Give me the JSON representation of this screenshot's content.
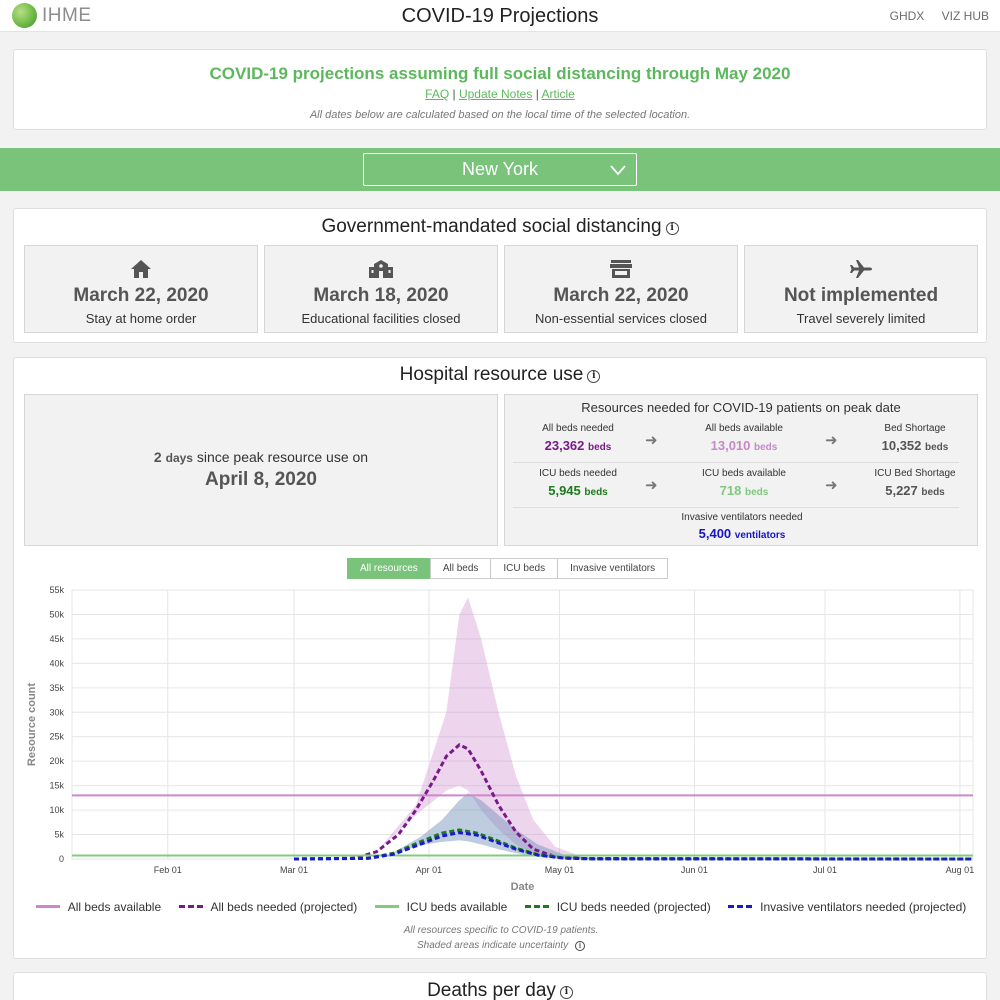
{
  "header": {
    "logo_text": "IHME",
    "title": "COVID-19 Projections",
    "nav": [
      "GHDX",
      "VIZ HUB"
    ]
  },
  "intro": {
    "title": "COVID-19 projections assuming full social distancing through May 2020",
    "links": [
      "FAQ",
      "Update Notes",
      "Article"
    ],
    "note": "All dates below are calculated based on the local time of the selected location."
  },
  "location": {
    "selected": "New York"
  },
  "distancing": {
    "title": "Government-mandated social distancing",
    "items": [
      {
        "icon": "home-icon",
        "date": "March 22, 2020",
        "label": "Stay at home order"
      },
      {
        "icon": "school-icon",
        "date": "March 18, 2020",
        "label": "Educational facilities closed"
      },
      {
        "icon": "store-icon",
        "date": "March 22, 2020",
        "label": "Non-essential services closed"
      },
      {
        "icon": "plane-icon",
        "date": "Not implemented",
        "label": "Travel severely limited"
      }
    ]
  },
  "hospital": {
    "title": "Hospital resource use",
    "peak": {
      "days": "2",
      "days_unit": "days",
      "text": "since peak resource use on",
      "date": "April 8, 2020"
    },
    "resources": {
      "title": "Resources needed for COVID-19 patients on peak date",
      "all_beds_needed": {
        "label": "All beds needed",
        "value": "23,362",
        "unit": "beds"
      },
      "all_beds_available": {
        "label": "All beds available",
        "value": "13,010",
        "unit": "beds"
      },
      "bed_shortage": {
        "label": "Bed Shortage",
        "value": "10,352",
        "unit": "beds"
      },
      "icu_needed": {
        "label": "ICU beds needed",
        "value": "5,945",
        "unit": "beds"
      },
      "icu_available": {
        "label": "ICU beds available",
        "value": "718",
        "unit": "beds"
      },
      "icu_shortage": {
        "label": "ICU Bed Shortage",
        "value": "5,227",
        "unit": "beds"
      },
      "ventilators": {
        "label": "Invasive ventilators needed",
        "value": "5,400",
        "unit": "ventilators"
      }
    },
    "tabs": [
      "All resources",
      "All beds",
      "ICU beds",
      "Invasive ventilators"
    ],
    "active_tab": "All resources",
    "notes": [
      "All resources specific to COVID-19 patients.",
      "Shaded areas indicate uncertainty"
    ]
  },
  "deaths": {
    "title": "Deaths per day"
  },
  "colors": {
    "all_beds": "#cc88cc",
    "all_beds_needed": "#7a1a8a",
    "icu_available": "#80cc80",
    "icu_needed": "#1e7a1e",
    "ventilators": "#1a1acc",
    "accent": "#5cb85c"
  },
  "chart_data": {
    "type": "line",
    "xlabel": "Date",
    "ylabel": "Resource count",
    "x_ticks": [
      "Feb 01",
      "Mar 01",
      "Apr 01",
      "May 01",
      "Jun 01",
      "Jul 01",
      "Aug 01"
    ],
    "x_range": [
      "2020-01-10",
      "2020-08-04"
    ],
    "ylim": [
      0,
      55000
    ],
    "y_ticks": [
      "0",
      "5k",
      "10k",
      "15k",
      "20k",
      "25k",
      "30k",
      "35k",
      "40k",
      "45k",
      "50k",
      "55k"
    ],
    "y_tick_values": [
      0,
      5000,
      10000,
      15000,
      20000,
      25000,
      30000,
      35000,
      40000,
      45000,
      50000,
      55000
    ],
    "grid": true,
    "legend_position": "bottom",
    "series": [
      {
        "name": "All beds available",
        "style": "solid",
        "color": "#cc88cc",
        "points": [
          [
            "2020-01-10",
            13010
          ],
          [
            "2020-08-04",
            13010
          ]
        ]
      },
      {
        "name": "All beds needed (projected)",
        "style": "dashed",
        "color": "#7a1a8a",
        "points": [
          [
            "2020-03-01",
            0
          ],
          [
            "2020-03-15",
            150
          ],
          [
            "2020-03-20",
            1500
          ],
          [
            "2020-03-25",
            5000
          ],
          [
            "2020-03-29",
            10000
          ],
          [
            "2020-04-02",
            16000
          ],
          [
            "2020-04-05",
            21000
          ],
          [
            "2020-04-08",
            23362
          ],
          [
            "2020-04-10",
            22500
          ],
          [
            "2020-04-13",
            18000
          ],
          [
            "2020-04-17",
            11000
          ],
          [
            "2020-04-21",
            5500
          ],
          [
            "2020-04-25",
            2000
          ],
          [
            "2020-04-30",
            500
          ],
          [
            "2020-05-06",
            100
          ],
          [
            "2020-08-04",
            0
          ]
        ],
        "band": [
          [
            "2020-03-20",
            1500,
            1500
          ],
          [
            "2020-03-29",
            9000,
            11000
          ],
          [
            "2020-04-05",
            14000,
            30000
          ],
          [
            "2020-04-08",
            15000,
            50000
          ],
          [
            "2020-04-10",
            14000,
            53500
          ],
          [
            "2020-04-13",
            10000,
            45000
          ],
          [
            "2020-04-17",
            6000,
            30000
          ],
          [
            "2020-04-21",
            3000,
            17000
          ],
          [
            "2020-04-25",
            1000,
            8000
          ],
          [
            "2020-04-30",
            200,
            2500
          ],
          [
            "2020-05-06",
            0,
            500
          ],
          [
            "2020-05-12",
            0,
            100
          ]
        ]
      },
      {
        "name": "ICU beds available",
        "style": "solid",
        "color": "#80cc80",
        "points": [
          [
            "2020-01-10",
            718
          ],
          [
            "2020-08-04",
            718
          ]
        ]
      },
      {
        "name": "ICU beds needed (projected)",
        "style": "dashed",
        "color": "#1e7a1e",
        "points": [
          [
            "2020-03-01",
            0
          ],
          [
            "2020-03-18",
            150
          ],
          [
            "2020-03-24",
            1200
          ],
          [
            "2020-03-30",
            3500
          ],
          [
            "2020-04-04",
            5300
          ],
          [
            "2020-04-08",
            5945
          ],
          [
            "2020-04-12",
            5300
          ],
          [
            "2020-04-16",
            4000
          ],
          [
            "2020-04-21",
            2200
          ],
          [
            "2020-04-26",
            900
          ],
          [
            "2020-05-02",
            200
          ],
          [
            "2020-05-08",
            30
          ],
          [
            "2020-08-04",
            0
          ]
        ],
        "band": [
          [
            "2020-03-24",
            1000,
            1400
          ],
          [
            "2020-03-30",
            2800,
            4500
          ],
          [
            "2020-04-04",
            3500,
            8000
          ],
          [
            "2020-04-08",
            3800,
            12000
          ],
          [
            "2020-04-10",
            3600,
            13500
          ],
          [
            "2020-04-13",
            3000,
            12000
          ],
          [
            "2020-04-17",
            2000,
            9000
          ],
          [
            "2020-04-21",
            1200,
            6000
          ],
          [
            "2020-04-26",
            400,
            3000
          ],
          [
            "2020-05-02",
            100,
            900
          ],
          [
            "2020-05-08",
            0,
            200
          ]
        ]
      },
      {
        "name": "Invasive ventilators needed (projected)",
        "style": "dashed",
        "color": "#1a1acc",
        "points": [
          [
            "2020-03-01",
            0
          ],
          [
            "2020-03-18",
            120
          ],
          [
            "2020-03-24",
            1000
          ],
          [
            "2020-03-30",
            3000
          ],
          [
            "2020-04-04",
            4700
          ],
          [
            "2020-04-08",
            5400
          ],
          [
            "2020-04-12",
            4900
          ],
          [
            "2020-04-16",
            3600
          ],
          [
            "2020-04-21",
            2000
          ],
          [
            "2020-04-26",
            800
          ],
          [
            "2020-05-02",
            180
          ],
          [
            "2020-05-08",
            30
          ],
          [
            "2020-08-04",
            0
          ]
        ]
      }
    ]
  }
}
